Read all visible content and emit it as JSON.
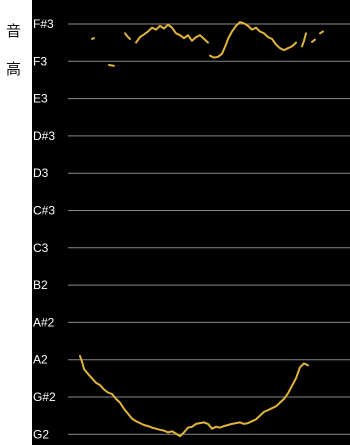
{
  "axis_title": [
    "音",
    "高"
  ],
  "colors": {
    "background": "#000000",
    "grid": "#8a8a8a",
    "curve": "#e0b43a",
    "label": "#ffffff"
  },
  "chart_data": {
    "type": "line",
    "title": "",
    "xlabel": "",
    "ylabel": "音高",
    "ylim": [
      "G2",
      "F#3"
    ],
    "y_ticks": [
      "F#3",
      "F3",
      "E3",
      "D#3",
      "D3",
      "C#3",
      "C3",
      "B2",
      "A#2",
      "A2",
      "G#2",
      "G2"
    ],
    "grid": true,
    "series": [
      {
        "segments": [
          [
            [
              60,
              "F3+0.6"
            ],
            [
              62,
              "F3+0.62"
            ]
          ],
          [
            [
              77,
              "F3-0.1"
            ],
            [
              82,
              "F3-0.12"
            ]
          ],
          [
            [
              93,
              "F3+0.75"
            ],
            [
              95,
              "F3+0.68"
            ],
            [
              98,
              "F3+0.6"
            ]
          ],
          [
            [
              104,
              "F3+0.5"
            ],
            [
              108,
              "F3+0.65"
            ],
            [
              112,
              "F3+0.72"
            ],
            [
              116,
              "F3+0.8"
            ],
            [
              120,
              "F3+0.9"
            ],
            [
              124,
              "F3+0.85"
            ],
            [
              128,
              "F3+0.95"
            ],
            [
              132,
              "F3+0.88"
            ],
            [
              136,
              "F3+0.98"
            ],
            [
              140,
              "F3+0.9"
            ],
            [
              144,
              "F3+0.75"
            ],
            [
              148,
              "F3+0.7"
            ],
            [
              152,
              "F3+0.62"
            ],
            [
              156,
              "F3+0.7"
            ],
            [
              160,
              "F3+0.55"
            ],
            [
              164,
              "F3+0.65"
            ],
            [
              168,
              "F3+0.7"
            ],
            [
              172,
              "F3+0.6"
            ],
            [
              176,
              "F3+0.5"
            ]
          ],
          [
            [
              178,
              "F3+0.15"
            ],
            [
              182,
              "F3+0.1"
            ],
            [
              186,
              "F3+0.12"
            ],
            [
              190,
              "F3+0.2"
            ],
            [
              194,
              "F3+0.45"
            ],
            [
              196,
              "F3+0.6"
            ],
            [
              200,
              "F3+0.8"
            ],
            [
              204,
              "F3+0.95"
            ],
            [
              208,
              "F3+1.05"
            ],
            [
              212,
              "F3+1.02"
            ],
            [
              216,
              "F3+0.95"
            ],
            [
              220,
              "F3+0.85"
            ],
            [
              224,
              "F3+0.9"
            ],
            [
              228,
              "F3+0.8"
            ],
            [
              232,
              "F3+0.75"
            ],
            [
              236,
              "F3+0.65"
            ],
            [
              240,
              "F3+0.6"
            ],
            [
              244,
              "F3+0.45"
            ],
            [
              248,
              "F3+0.35"
            ],
            [
              252,
              "F3+0.3"
            ],
            [
              256,
              "F3+0.35"
            ],
            [
              260,
              "F3+0.4"
            ],
            [
              264,
              "F3+0.5"
            ]
          ],
          [
            [
              270,
              "F3+0.4"
            ],
            [
              272,
              "F3+0.55"
            ],
            [
              274,
              "F3+0.75"
            ]
          ],
          [
            [
              280,
              "F3+0.52"
            ],
            [
              283,
              "F3+0.58"
            ]
          ],
          [
            [
              288,
              "F3+0.75"
            ],
            [
              291,
              "F3+0.8"
            ]
          ],
          [
            [
              48,
              "A2+0.1"
            ],
            [
              50,
              "A2-0.05"
            ],
            [
              52,
              "A2-0.25"
            ],
            [
              56,
              "A2-0.38"
            ],
            [
              60,
              "A2-0.5"
            ],
            [
              64,
              "A2-0.62"
            ],
            [
              68,
              "A2-0.68"
            ],
            [
              72,
              "A2-0.8"
            ],
            [
              76,
              "A2-0.88"
            ],
            [
              80,
              "A2-0.92"
            ],
            [
              84,
              "A2-1.05"
            ],
            [
              88,
              "A2-1.15"
            ],
            [
              92,
              "A2-1.32"
            ],
            [
              96,
              "A2-1.45"
            ],
            [
              100,
              "A2-1.58"
            ],
            [
              104,
              "A2-1.65"
            ],
            [
              108,
              "A2-1.7"
            ],
            [
              112,
              "A2-1.75"
            ],
            [
              116,
              "A2-1.78"
            ],
            [
              120,
              "A2-1.82"
            ],
            [
              124,
              "A2-1.85"
            ],
            [
              128,
              "A2-1.88"
            ],
            [
              132,
              "A2-1.9"
            ],
            [
              136,
              "A2-1.95"
            ],
            [
              140,
              "A2-1.92"
            ],
            [
              144,
              "A2-1.98"
            ],
            [
              148,
              "A2-2.05"
            ],
            [
              152,
              "A2-1.95"
            ],
            [
              156,
              "A2-1.82"
            ],
            [
              160,
              "A2-1.8"
            ],
            [
              164,
              "A2-1.72"
            ],
            [
              168,
              "A2-1.7"
            ],
            [
              172,
              "A2-1.68"
            ],
            [
              176,
              "A2-1.72"
            ],
            [
              180,
              "A2-1.85"
            ],
            [
              184,
              "A2-1.8"
            ],
            [
              188,
              "A2-1.82"
            ],
            [
              192,
              "A2-1.78"
            ],
            [
              196,
              "A2-1.75"
            ],
            [
              200,
              "A2-1.72"
            ],
            [
              204,
              "A2-1.7"
            ],
            [
              208,
              "A2-1.68"
            ],
            [
              212,
              "A2-1.72"
            ],
            [
              216,
              "A2-1.7"
            ],
            [
              220,
              "A2-1.65"
            ],
            [
              224,
              "A2-1.6"
            ],
            [
              228,
              "A2-1.5"
            ],
            [
              232,
              "A2-1.4"
            ],
            [
              236,
              "A2-1.35"
            ],
            [
              240,
              "A2-1.3"
            ],
            [
              244,
              "A2-1.25"
            ],
            [
              248,
              "A2-1.15"
            ],
            [
              252,
              "A2-1.05"
            ],
            [
              256,
              "A2-0.9"
            ],
            [
              260,
              "A2-0.7"
            ],
            [
              264,
              "A2-0.5"
            ],
            [
              268,
              "A2-0.2"
            ],
            [
              272,
              "A2-0.1"
            ],
            [
              276,
              "A2-0.15"
            ]
          ]
        ]
      }
    ]
  }
}
